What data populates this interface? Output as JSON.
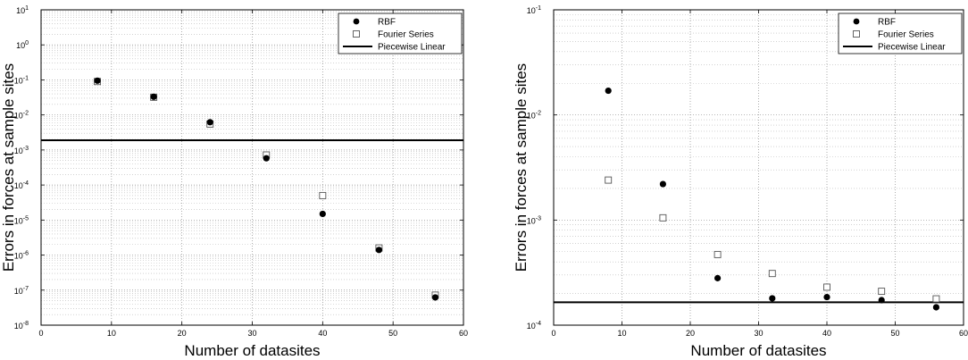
{
  "chart_data": [
    {
      "type": "scatter",
      "title": "",
      "xlabel": "Number of datasites",
      "ylabel": "Errors in forces at sample sites",
      "xlim": [
        0,
        60
      ],
      "ylim_exponent": [
        -8,
        1
      ],
      "yscale": "log",
      "grid": true,
      "legend_position": "top-right",
      "xticks": [
        "0",
        "10",
        "20",
        "30",
        "40",
        "50",
        "60"
      ],
      "yticks": [
        {
          "exp": -8,
          "label": "10",
          "sup": "-8"
        },
        {
          "exp": -7,
          "label": "10",
          "sup": "-7"
        },
        {
          "exp": -6,
          "label": "10",
          "sup": "-6"
        },
        {
          "exp": -5,
          "label": "10",
          "sup": "-5"
        },
        {
          "exp": -4,
          "label": "10",
          "sup": "-4"
        },
        {
          "exp": -3,
          "label": "10",
          "sup": "-3"
        },
        {
          "exp": -2,
          "label": "10",
          "sup": "-2"
        },
        {
          "exp": -1,
          "label": "10",
          "sup": "-1"
        },
        {
          "exp": 0,
          "label": "10",
          "sup": "0"
        },
        {
          "exp": 1,
          "label": "10",
          "sup": "1"
        }
      ],
      "x": [
        8,
        16,
        24,
        32,
        40,
        48,
        56
      ],
      "series": [
        {
          "name": "RBF",
          "marker": "filled-circle",
          "values": [
            0.095,
            0.033,
            0.0062,
            0.00058,
            1.5e-05,
            1.4e-06,
            6.2e-08
          ]
        },
        {
          "name": "Fourier Series",
          "marker": "open-square",
          "values": [
            0.09,
            0.032,
            0.0055,
            0.00072,
            5e-05,
            1.6e-06,
            7.2e-08
          ]
        },
        {
          "name": "Piecewise Linear",
          "marker": "line",
          "values": [
            0.0019
          ]
        }
      ]
    },
    {
      "type": "scatter",
      "title": "",
      "xlabel": "Number of datasites",
      "ylabel": "Errors in forces at sample sites",
      "xlim": [
        0,
        60
      ],
      "ylim_exponent": [
        -4,
        -1
      ],
      "yscale": "log",
      "grid": true,
      "legend_position": "top-right",
      "xticks": [
        "0",
        "10",
        "20",
        "30",
        "40",
        "50",
        "60"
      ],
      "yticks": [
        {
          "exp": -4,
          "label": "10",
          "sup": "-4"
        },
        {
          "exp": -3,
          "label": "10",
          "sup": "-3"
        },
        {
          "exp": -2,
          "label": "10",
          "sup": "-2"
        },
        {
          "exp": -1,
          "label": "10",
          "sup": "-1"
        }
      ],
      "x": [
        8,
        16,
        24,
        32,
        40,
        48,
        56
      ],
      "series": [
        {
          "name": "RBF",
          "marker": "filled-circle",
          "values": [
            0.017,
            0.0022,
            0.00028,
            0.00018,
            0.000185,
            0.000173,
            0.000148
          ]
        },
        {
          "name": "Fourier Series",
          "marker": "open-square",
          "values": [
            0.0024,
            0.00105,
            0.00047,
            0.00031,
            0.00023,
            0.00021,
            0.000178
          ]
        },
        {
          "name": "Piecewise Linear",
          "marker": "line",
          "values": [
            0.000165
          ]
        }
      ]
    }
  ]
}
